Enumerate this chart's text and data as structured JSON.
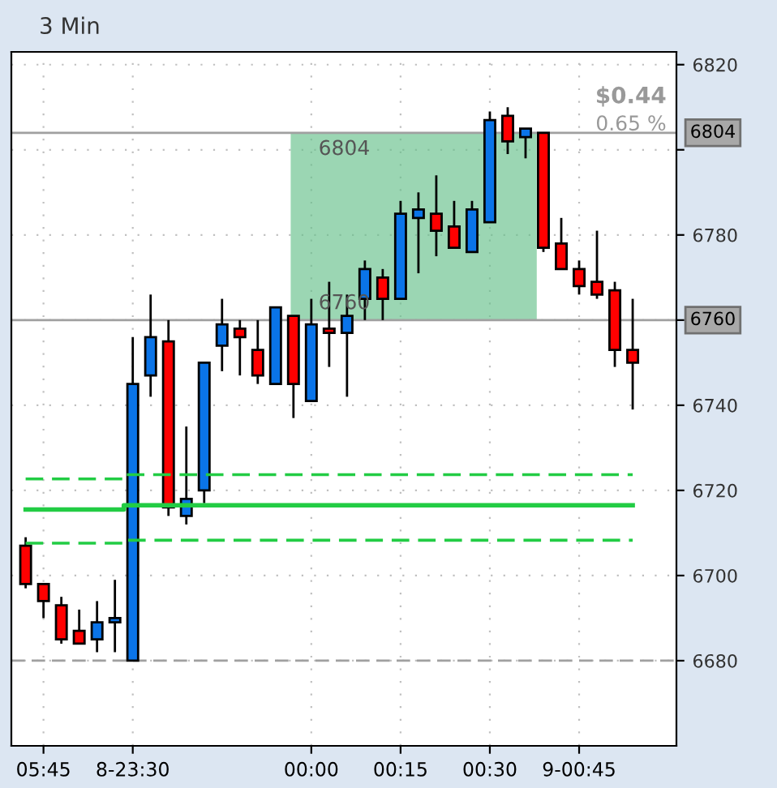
{
  "chart_data": {
    "type": "candlestick",
    "title": "3 Min",
    "categories": [
      null,
      "05:45",
      null,
      null,
      null,
      null,
      "8-23:30",
      null,
      null,
      null,
      null,
      null,
      null,
      null,
      null,
      null,
      "00:00",
      null,
      null,
      null,
      null,
      "00:15",
      null,
      null,
      null,
      null,
      "00:30",
      null,
      null,
      null,
      null,
      "9-00:45",
      null,
      null,
      null
    ],
    "ohlc": [
      [
        6707,
        6709,
        6697,
        6698
      ],
      [
        6698,
        6698,
        6690,
        6694
      ],
      [
        6693,
        6695,
        6684,
        6685
      ],
      [
        6687,
        6692,
        6684,
        6684
      ],
      [
        6685,
        6694,
        6682,
        6689
      ],
      [
        6689,
        6699,
        6682,
        6690
      ],
      [
        6680,
        6756,
        6680,
        6745
      ],
      [
        6747,
        6766,
        6742,
        6756
      ],
      [
        6755,
        6760,
        6714,
        6716
      ],
      [
        6714,
        6735,
        6712,
        6718
      ],
      [
        6720,
        6750,
        6717,
        6750
      ],
      [
        6754,
        6765,
        6748,
        6759
      ],
      [
        6758,
        6760,
        6747,
        6756
      ],
      [
        6753,
        6760,
        6745,
        6747
      ],
      [
        6745,
        6763,
        6745,
        6763
      ],
      [
        6761,
        6761,
        6737,
        6745
      ],
      [
        6741,
        6765,
        6741,
        6759
      ],
      [
        6758,
        6769,
        6749,
        6757
      ],
      [
        6757,
        6766,
        6742,
        6761
      ],
      [
        6765,
        6774,
        6760,
        6772
      ],
      [
        6770,
        6772,
        6760,
        6765
      ],
      [
        6765,
        6788,
        6765,
        6785
      ],
      [
        6784,
        6790,
        6771,
        6786
      ],
      [
        6785,
        6794,
        6775,
        6781
      ],
      [
        6782,
        6788,
        6777,
        6777
      ],
      [
        6776,
        6788,
        6776,
        6786
      ],
      [
        6783,
        6809,
        6783,
        6807
      ],
      [
        6808,
        6810,
        6799,
        6802
      ],
      [
        6803,
        6805,
        6798,
        6805
      ],
      [
        6804,
        6804,
        6776,
        6777
      ],
      [
        6778,
        6784,
        6772,
        6772
      ],
      [
        6772,
        6774,
        6766,
        6768
      ],
      [
        6769,
        6781,
        6765,
        6766
      ],
      [
        6767,
        6769,
        6749,
        6753
      ],
      [
        6753,
        6765,
        6739,
        6750
      ]
    ],
    "colors": [
      "#ff0000",
      "#ff0000",
      "#ff0000",
      "#ff0000",
      "#0a74e8",
      "#0a74e8",
      "#0a74e8",
      "#0a74e8",
      "#ff0000",
      "#0a74e8",
      "#0a74e8",
      "#0a74e8",
      "#ff0000",
      "#ff0000",
      "#0a74e8",
      "#ff0000",
      "#0a74e8",
      "#ff0000",
      "#0a74e8",
      "#0a74e8",
      "#ff0000",
      "#0a74e8",
      "#0a74e8",
      "#ff0000",
      "#ff0000",
      "#0a74e8",
      "#0a74e8",
      "#ff0000",
      "#0a74e8",
      "#ff0000",
      "#ff0000",
      "#ff0000",
      "#ff0000",
      "#ff0000",
      "#ff0000"
    ],
    "series": [
      {
        "type": "line",
        "color": "#22cc44",
        "line_style": "dashed",
        "values": [
          6722.7,
          6722.7,
          6722.7,
          6722.7,
          6722.7,
          6722.7,
          6723.7,
          6723.7,
          6723.7,
          6723.7,
          6723.7,
          6723.7,
          6723.7,
          6723.7,
          6723.7,
          6723.7,
          6723.7,
          6723.7,
          6723.7,
          6723.7,
          6723.7,
          6723.7,
          6723.7,
          6723.7,
          6723.7,
          6723.7,
          6723.7,
          6723.7,
          6723.7,
          6723.7,
          6723.7,
          6723.7,
          6723.7,
          6723.7,
          6723.7
        ]
      },
      {
        "type": "line",
        "color": "#22cc44",
        "line_style": "solid",
        "values": [
          6715.5,
          6715.5,
          6715.5,
          6715.5,
          6715.5,
          6715.5,
          6716.5,
          6716.5,
          6716.5,
          6716.5,
          6716.5,
          6716.5,
          6716.5,
          6716.5,
          6716.5,
          6716.5,
          6716.5,
          6716.5,
          6716.5,
          6716.5,
          6716.5,
          6716.5,
          6716.5,
          6716.5,
          6716.5,
          6716.5,
          6716.5,
          6716.5,
          6716.5,
          6716.5,
          6716.5,
          6716.5,
          6716.5,
          6716.5,
          6716.5
        ]
      },
      {
        "type": "line",
        "color": "#22cc44",
        "line_style": "dashed",
        "values": [
          6707.6,
          6707.6,
          6707.6,
          6707.6,
          6707.6,
          6707.6,
          6708.3,
          6708.3,
          6708.3,
          6708.3,
          6708.3,
          6708.3,
          6708.3,
          6708.3,
          6708.3,
          6708.3,
          6708.3,
          6708.3,
          6708.3,
          6708.3,
          6708.3,
          6708.3,
          6708.3,
          6708.3,
          6708.3,
          6708.3,
          6708.3,
          6708.3,
          6708.3,
          6708.3,
          6708.3,
          6708.3,
          6708.3,
          6708.3,
          6708.3
        ]
      }
    ],
    "ylim": [
      6660,
      6823
    ],
    "yticks": [
      6680,
      6700,
      6720,
      6740,
      {
        "value": 6760,
        "label": null
      },
      6780,
      {
        "value": 6800,
        "label": null
      },
      6820
    ],
    "ref_lines": [
      {
        "axis": "y",
        "value": 6680,
        "color": "#a0a0a0",
        "line_style": "dashed"
      },
      {
        "axis": "y",
        "value": 6760,
        "label": "6760",
        "color": "#a0a0a0",
        "line_style": "solid"
      },
      {
        "axis": "y",
        "value": 6804,
        "label": "6804",
        "color": "#a0a0a0",
        "line_style": "solid"
      }
    ],
    "bands": [
      {
        "axis": "y",
        "from": 6760,
        "to": 6804,
        "color": "#66c08a"
      }
    ],
    "annotations": [
      {
        "text": "6804",
        "y": 6804
      },
      {
        "text": "6760",
        "y": 6760
      },
      "$0.44",
      "0.65 %"
    ],
    "grid": true
  }
}
